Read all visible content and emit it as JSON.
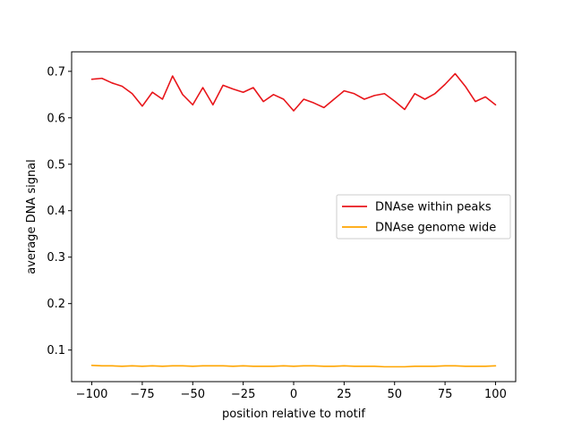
{
  "chart_data": {
    "type": "line",
    "title": "",
    "xlabel": "position relative to motif",
    "ylabel": "average DNA signal",
    "xlim": [
      -110,
      110
    ],
    "ylim": [
      0.032,
      0.742
    ],
    "xticks": [
      -100,
      -75,
      -50,
      -25,
      0,
      25,
      50,
      75,
      100
    ],
    "xtick_labels": [
      "−100",
      "−75",
      "−50",
      "−25",
      "0",
      "25",
      "50",
      "75",
      "100"
    ],
    "yticks": [
      0.1,
      0.2,
      0.3,
      0.4,
      0.5,
      0.6,
      0.7
    ],
    "ytick_labels": [
      "0.1",
      "0.2",
      "0.3",
      "0.4",
      "0.5",
      "0.6",
      "0.7"
    ],
    "grid": false,
    "legend": "center-right",
    "x": [
      -100,
      -95,
      -90,
      -85,
      -80,
      -75,
      -70,
      -65,
      -60,
      -55,
      -50,
      -45,
      -40,
      -35,
      -30,
      -25,
      -20,
      -15,
      -10,
      -5,
      0,
      5,
      10,
      15,
      20,
      25,
      30,
      35,
      40,
      45,
      50,
      55,
      60,
      65,
      70,
      75,
      80,
      85,
      90,
      95,
      100
    ],
    "series": [
      {
        "name": "DNAse within peaks",
        "color": "#e8161b",
        "values": [
          0.683,
          0.685,
          0.675,
          0.668,
          0.652,
          0.625,
          0.655,
          0.64,
          0.69,
          0.65,
          0.628,
          0.665,
          0.628,
          0.67,
          0.662,
          0.655,
          0.665,
          0.635,
          0.65,
          0.64,
          0.615,
          0.64,
          0.632,
          0.622,
          0.64,
          0.658,
          0.652,
          0.64,
          0.648,
          0.652,
          0.636,
          0.618,
          0.652,
          0.64,
          0.652,
          0.672,
          0.695,
          0.668,
          0.635,
          0.645,
          0.628
        ]
      },
      {
        "name": "DNAse genome wide",
        "color": "#ffa500",
        "values": [
          0.067,
          0.066,
          0.066,
          0.065,
          0.066,
          0.065,
          0.066,
          0.065,
          0.066,
          0.066,
          0.065,
          0.066,
          0.066,
          0.066,
          0.065,
          0.066,
          0.065,
          0.065,
          0.065,
          0.066,
          0.065,
          0.066,
          0.066,
          0.065,
          0.065,
          0.066,
          0.065,
          0.065,
          0.065,
          0.064,
          0.064,
          0.064,
          0.065,
          0.065,
          0.065,
          0.066,
          0.066,
          0.065,
          0.065,
          0.065,
          0.066
        ]
      }
    ]
  }
}
